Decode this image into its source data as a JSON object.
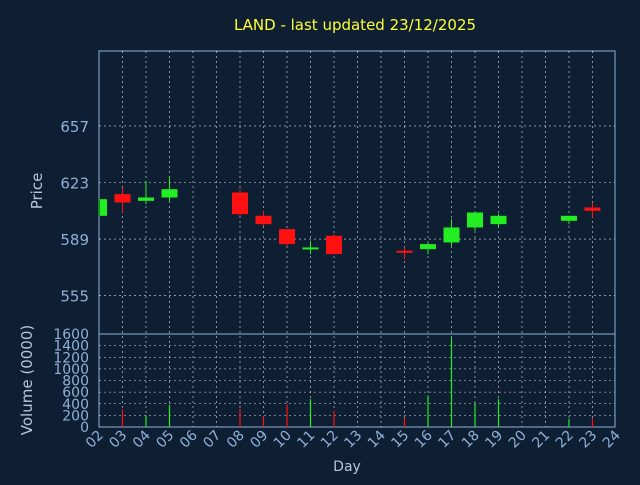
{
  "chart_data": {
    "type": "candlestick",
    "title": "LAND - last updated 23/12/2025",
    "xlabel": "Day",
    "price_ylabel": "Price",
    "volume_ylabel": "Volume (0000)",
    "x_ticks": [
      "02",
      "03",
      "04",
      "05",
      "06",
      "07",
      "08",
      "09",
      "10",
      "11",
      "12",
      "13",
      "14",
      "15",
      "16",
      "17",
      "18",
      "19",
      "20",
      "21",
      "22",
      "23",
      "24"
    ],
    "price_ticks": [
      657,
      623,
      589,
      555
    ],
    "price_ylim": [
      532,
      702
    ],
    "volume_ticks": [
      0,
      200,
      400,
      600,
      800,
      1000,
      1200,
      1400,
      1600
    ],
    "volume_ylim": [
      0,
      1600
    ],
    "grid": true,
    "colors": {
      "background": "#0f1f33",
      "title": "#ffff33",
      "axis_text": "#8fb0d8",
      "axis_label": "#b7c6d9",
      "grid": "#ffffff",
      "up": "#22ee22",
      "down": "#ff1111"
    },
    "candles": [
      {
        "day": "02",
        "open": 603,
        "high": 613,
        "low": 603,
        "close": 613,
        "volume": 0
      },
      {
        "day": "03",
        "open": 616,
        "high": 620,
        "low": 605,
        "close": 611,
        "volume": 300
      },
      {
        "day": "04",
        "open": 612,
        "high": 624,
        "low": 610,
        "close": 614,
        "volume": 200
      },
      {
        "day": "05",
        "open": 614,
        "high": 627,
        "low": 612,
        "close": 619,
        "volume": 380
      },
      {
        "day": "08",
        "open": 617,
        "high": 619,
        "low": 603,
        "close": 604,
        "volume": 310
      },
      {
        "day": "09",
        "open": 603,
        "high": 606,
        "low": 597,
        "close": 598,
        "volume": 180
      },
      {
        "day": "10",
        "open": 595,
        "high": 595,
        "low": 585,
        "close": 586,
        "volume": 390
      },
      {
        "day": "11",
        "open": 584,
        "high": 588,
        "low": 580,
        "close": 584,
        "volume": 480
      },
      {
        "day": "12",
        "open": 591,
        "high": 592,
        "low": 580,
        "close": 580,
        "volume": 280
      },
      {
        "day": "15",
        "open": 582,
        "high": 584,
        "low": 577,
        "close": 581,
        "volume": 160
      },
      {
        "day": "16",
        "open": 583,
        "high": 587,
        "low": 580,
        "close": 586,
        "volume": 540
      },
      {
        "day": "17",
        "open": 587,
        "high": 601,
        "low": 585,
        "close": 596,
        "volume": 1530
      },
      {
        "day": "18",
        "open": 596,
        "high": 605,
        "low": 594,
        "close": 605,
        "volume": 410
      },
      {
        "day": "19",
        "open": 598,
        "high": 604,
        "low": 596,
        "close": 603,
        "volume": 480
      },
      {
        "day": "22",
        "open": 600,
        "high": 603,
        "low": 598,
        "close": 603,
        "volume": 140
      },
      {
        "day": "23",
        "open": 608,
        "high": 611,
        "low": 602,
        "close": 606,
        "volume": 150
      }
    ]
  }
}
